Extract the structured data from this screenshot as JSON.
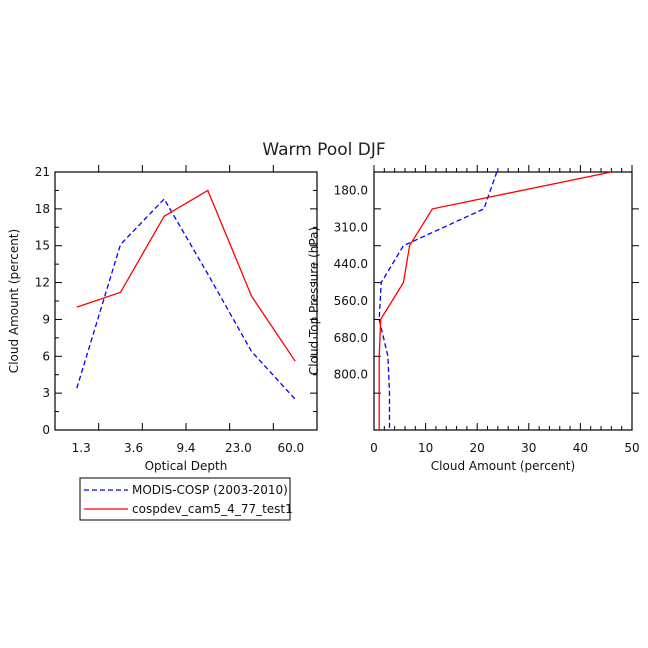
{
  "figure": {
    "title": "Warm Pool DJF"
  },
  "legend": {
    "entries": [
      {
        "label": "MODIS-COSP (2003-2010)",
        "color": "#0000ff",
        "dash": true
      },
      {
        "label": "cospdev_cam5_4_77_test1",
        "color": "#ff0000",
        "dash": false
      }
    ]
  },
  "chart_data": [
    {
      "type": "line",
      "xlabel": "Optical Depth",
      "ylabel": "Cloud Amount (percent)",
      "x_tick_labels": [
        "1.3",
        "3.6",
        "9.4",
        "23.0",
        "60.0"
      ],
      "y_ticks": [
        "0",
        "3",
        "6",
        "9",
        "12",
        "15",
        "18",
        "21"
      ],
      "ylim": [
        0,
        21
      ],
      "x_bins": [
        "0.3",
        "1.3",
        "3.6",
        "9.4",
        "23.0",
        "60.0",
        "379.0"
      ],
      "series": [
        {
          "name": "MODIS-COSP (2003-2010)",
          "color": "#0000ff",
          "values": [
            3.4,
            15.1,
            18.8,
            12.7,
            6.4,
            2.5
          ]
        },
        {
          "name": "cospdev_cam5_4_77_test1",
          "color": "#ff0000",
          "values": [
            10.0,
            11.2,
            17.4,
            19.5,
            10.9,
            5.6
          ]
        }
      ]
    },
    {
      "type": "line",
      "xlabel": "Cloud Amount (percent)",
      "ylabel": "Cloud Top Pressure (hPa)",
      "x_ticks": [
        "0",
        "10",
        "20",
        "30",
        "40",
        "50"
      ],
      "xlim": [
        0,
        50
      ],
      "y_tick_labels": [
        "180.0",
        "310.0",
        "440.0",
        "560.0",
        "680.0",
        "800.0"
      ],
      "y_levels": [
        "50",
        "180.0",
        "310.0",
        "440.0",
        "560.0",
        "680.0",
        "800.0",
        "1000"
      ],
      "series": [
        {
          "name": "MODIS-COSP (2003-2010)",
          "color": "#0000ff",
          "values": [
            23.8,
            21.3,
            5.7,
            1.4,
            1.0,
            2.7,
            3.0
          ]
        },
        {
          "name": "cospdev_cam5_4_77_test1",
          "color": "#ff0000",
          "values": [
            46.0,
            11.3,
            6.9,
            5.7,
            1.3,
            1.0,
            1.0
          ]
        }
      ]
    }
  ]
}
